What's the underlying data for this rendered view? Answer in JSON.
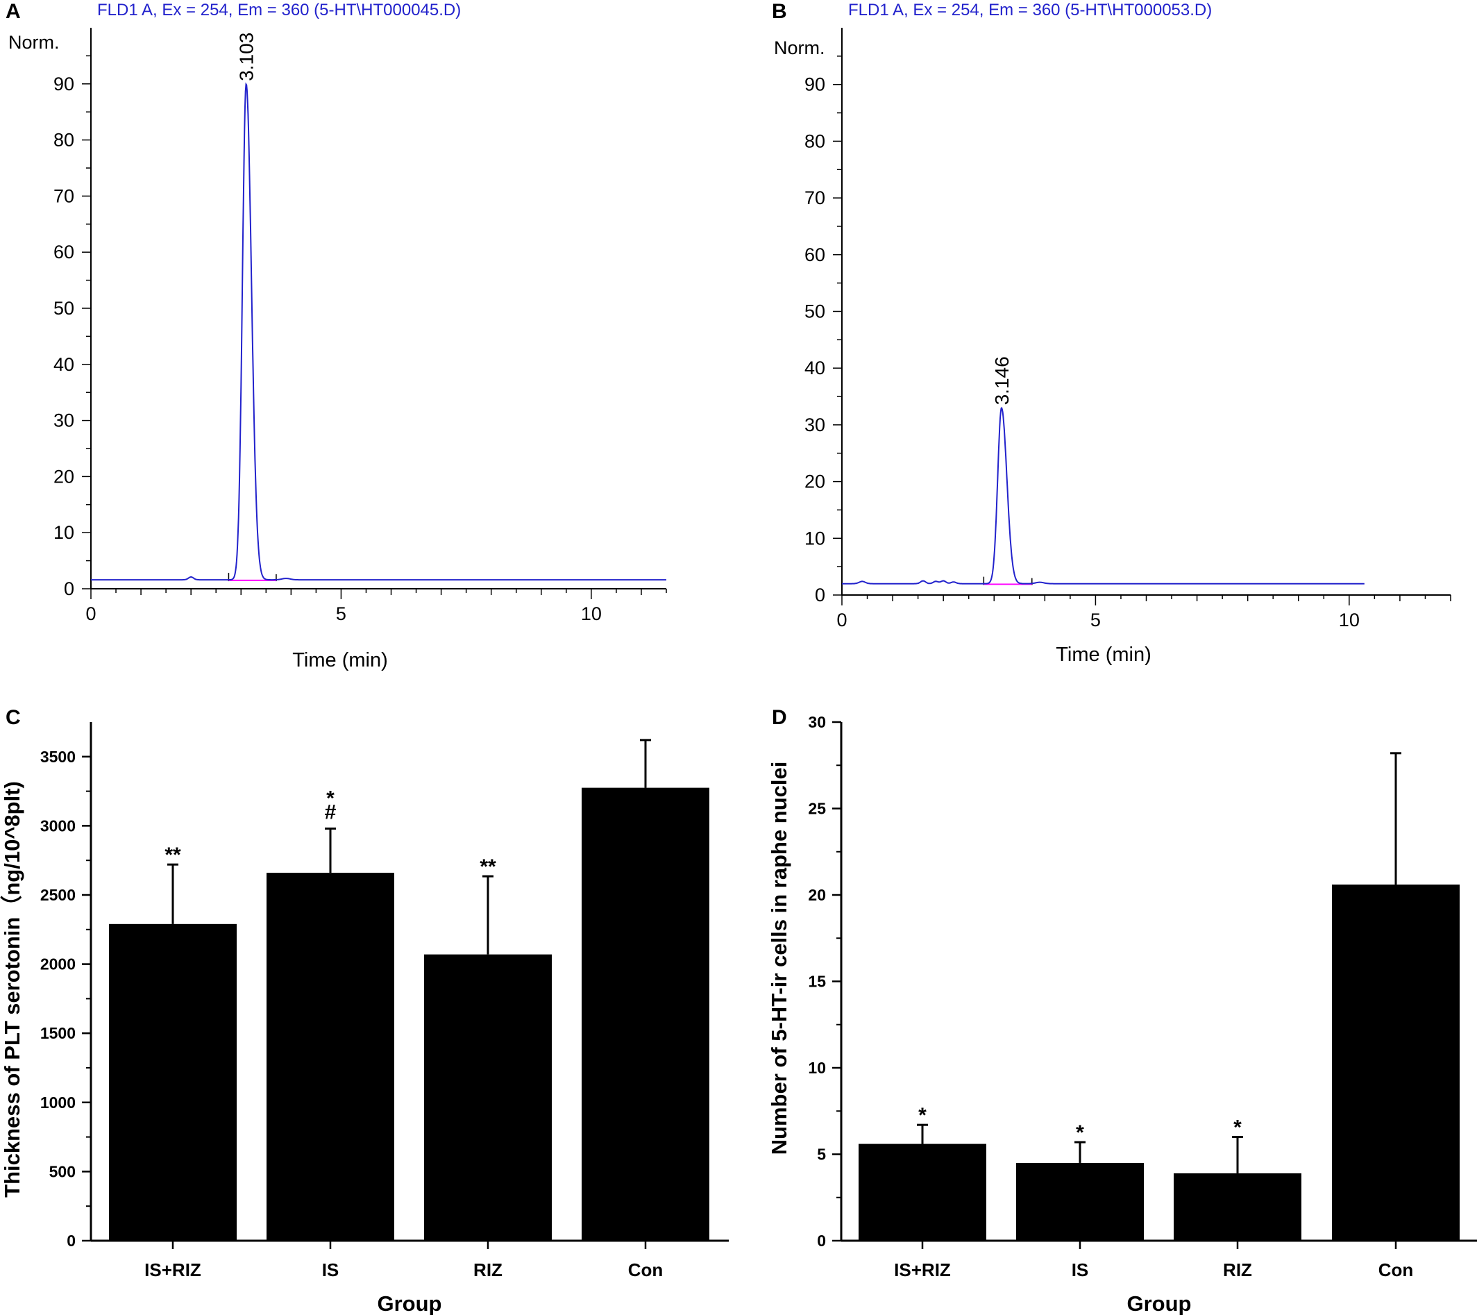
{
  "chart_data": [
    {
      "panel": "A",
      "type": "line",
      "title": "FLD1 A, Ex = 254, Em = 360 (5-HT\\HT000045.D)",
      "xlabel": "Time (min)",
      "ylabel": "Norm.",
      "xlim": [
        0,
        11.5
      ],
      "ylim": [
        0,
        100
      ],
      "xticks": [
        0,
        5,
        10
      ],
      "yticks": [
        0,
        10,
        20,
        30,
        40,
        50,
        60,
        70,
        80,
        90
      ],
      "xdata_max": 11.5,
      "baseline": 1.6,
      "peak": {
        "x": 3.103,
        "y": 90,
        "label": "3.103"
      },
      "colors": {
        "trace": "#2222cc",
        "integration": "#ff00ff"
      }
    },
    {
      "panel": "B",
      "type": "line",
      "title": "FLD1 A, Ex = 254, Em = 360 (5-HT\\HT000053.D)",
      "xlabel": "Time (min)",
      "ylabel": "Norm.",
      "xlim": [
        0,
        12
      ],
      "ylim": [
        0,
        100
      ],
      "xticks": [
        0,
        5,
        10
      ],
      "yticks": [
        0,
        10,
        20,
        30,
        40,
        50,
        60,
        70,
        80,
        90
      ],
      "xdata_max": 10.3,
      "baseline": 2.0,
      "peak": {
        "x": 3.146,
        "y": 33,
        "label": "3.146"
      },
      "colors": {
        "trace": "#2222cc",
        "integration": "#ff00ff"
      }
    },
    {
      "panel": "C",
      "type": "bar",
      "categories": [
        "IS+RIZ",
        "IS",
        "RIZ",
        "Con"
      ],
      "values": [
        2290,
        2660,
        2070,
        3275
      ],
      "errors": [
        430,
        320,
        565,
        345
      ],
      "annotations": [
        "**",
        "*\n#",
        "**",
        ""
      ],
      "xlabel": "Group",
      "ylabel": "Thickness of PLT serotonin（ng/10^8plt)",
      "ylim": [
        0,
        3750
      ],
      "yticks": [
        0,
        500,
        1000,
        1500,
        2000,
        2500,
        3000,
        3500
      ]
    },
    {
      "panel": "D",
      "type": "bar",
      "categories": [
        "IS+RIZ",
        "IS",
        "RIZ",
        "Con"
      ],
      "values": [
        5.6,
        4.5,
        3.9,
        20.6
      ],
      "errors": [
        1.1,
        1.2,
        2.1,
        7.6
      ],
      "annotations": [
        "*",
        "*",
        "*",
        ""
      ],
      "xlabel": "Group",
      "ylabel": "Number of 5-HT-ir cells in raphe nuclei",
      "ylim": [
        0,
        30
      ],
      "yticks": [
        0,
        5,
        10,
        15,
        20,
        25,
        30
      ]
    }
  ]
}
